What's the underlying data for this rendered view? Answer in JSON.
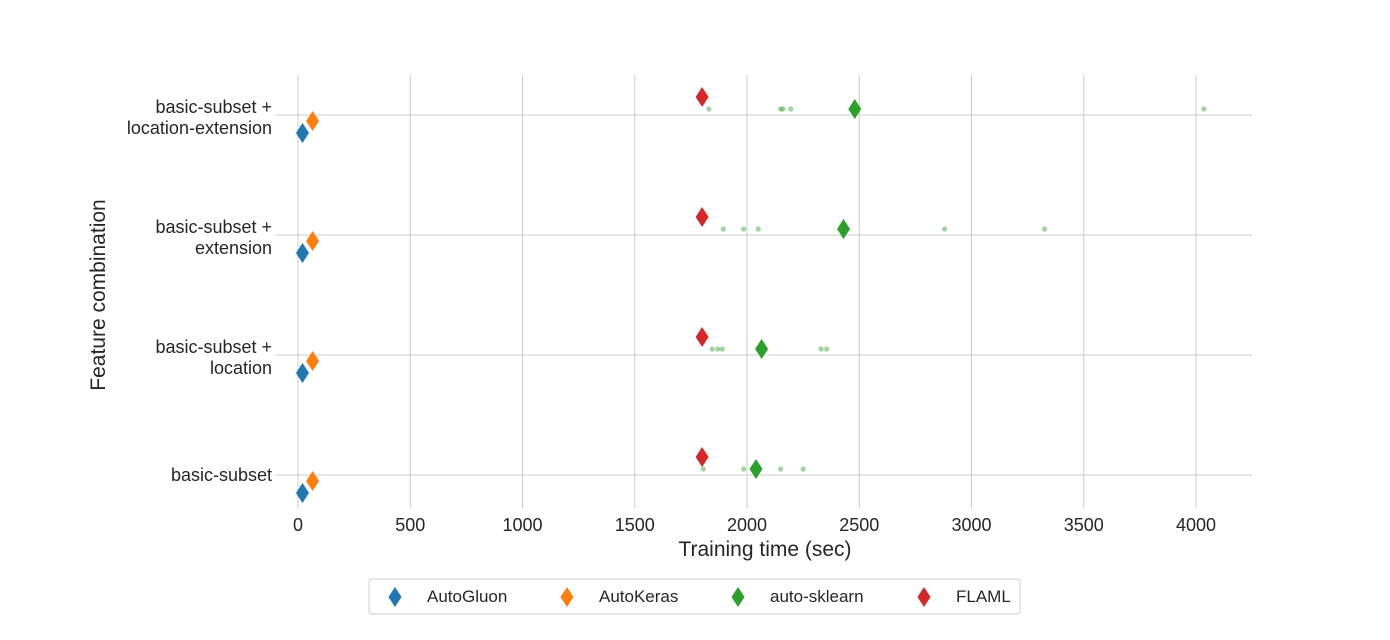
{
  "chart_data": {
    "type": "scatter",
    "xlabel": "Training time (sec)",
    "ylabel": "Feature combination",
    "xlim": [
      -100,
      4250
    ],
    "x_ticks": [
      "0",
      "500",
      "1000",
      "1500",
      "2000",
      "2500",
      "3000",
      "3500",
      "4000"
    ],
    "x_tick_values": [
      0,
      500,
      1000,
      1500,
      2000,
      2500,
      3000,
      3500,
      4000
    ],
    "categories": [
      {
        "line1": "basic-subset +",
        "line2": "location-extension"
      },
      {
        "line1": "basic-subset +",
        "line2": "extension"
      },
      {
        "line1": "basic-subset +",
        "line2": "location"
      },
      {
        "line1": "basic-subset",
        "line2": ""
      }
    ],
    "grid": true,
    "legend_position": "bottom-center",
    "series": [
      {
        "name": "AutoGluon",
        "color": "#1f77b4",
        "offset": 0.15,
        "values": [
          20,
          20,
          20,
          20
        ]
      },
      {
        "name": "AutoKeras",
        "color": "#ff7f0e",
        "offset": 0.05,
        "values": [
          65,
          65,
          65,
          65
        ]
      },
      {
        "name": "auto-sklearn",
        "color": "#2ca02c",
        "offset": -0.05,
        "values": [
          2480,
          2430,
          2065,
          2040
        ]
      },
      {
        "name": "FLAML",
        "color": "#d62728",
        "offset": -0.15,
        "values": [
          1800,
          1800,
          1800,
          1800
        ]
      }
    ],
    "runs": {
      "name": "auto-sklearn runs",
      "color": "#2ca02c",
      "offset": -0.05,
      "points": [
        [
          1830,
          2150,
          2160,
          2195,
          4035
        ],
        [
          1895,
          1985,
          2050,
          2880,
          3325
        ],
        [
          1845,
          1870,
          1890,
          2330,
          2355
        ],
        [
          1805,
          1985,
          2150,
          2250
        ]
      ]
    }
  }
}
